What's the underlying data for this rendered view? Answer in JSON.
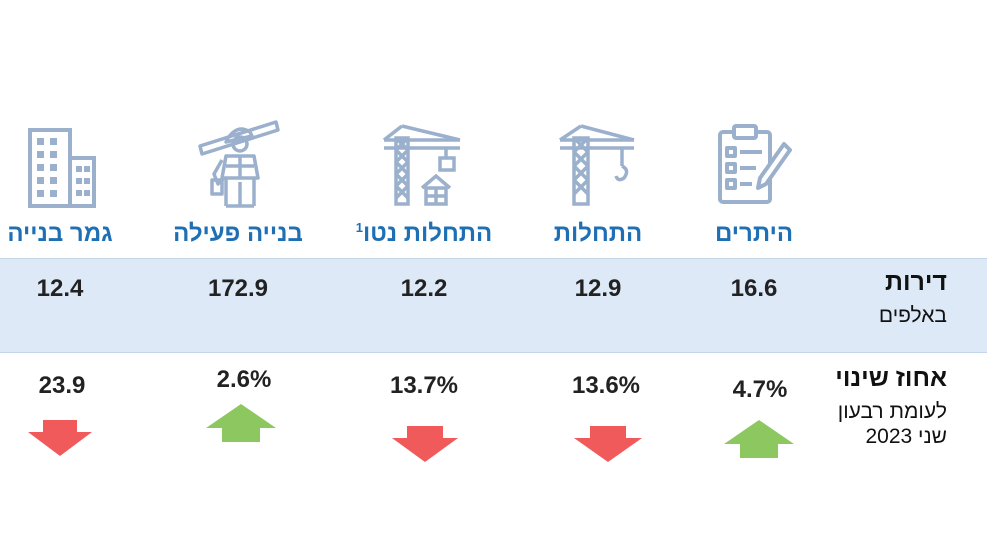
{
  "colors": {
    "title": "#1f6fb4",
    "icon": "#9ab0cc",
    "band": "#dde9f7",
    "up": "#8cc760",
    "down": "#f05a5a"
  },
  "rows": {
    "units": {
      "label": "דירות",
      "sublabel": "באלפים"
    },
    "change": {
      "label": "אחוז שינוי",
      "sublabel1": "לעומת רבעון",
      "sublabel2": "שני 2023"
    }
  },
  "columns": [
    {
      "title": "היתרים",
      "icon": "clipboard-checklist-icon",
      "value": "16.6",
      "change": "4.7%",
      "direction": "up"
    },
    {
      "title": "התחלות",
      "icon": "crane-icon",
      "value": "12.9",
      "change": "13.6%",
      "direction": "down"
    },
    {
      "title": "התחלות נטו",
      "footnote": "1",
      "icon": "crane-building-icon",
      "value": "12.2",
      "change": "13.7%",
      "direction": "down"
    },
    {
      "title": "בנייה פעילה",
      "icon": "construction-worker-icon",
      "value": "172.9",
      "change": "2.6%",
      "direction": "up"
    },
    {
      "title": "גמר בנייה",
      "icon": "building-icon",
      "value": "12.4",
      "change": "23.9",
      "direction": "down"
    }
  ]
}
